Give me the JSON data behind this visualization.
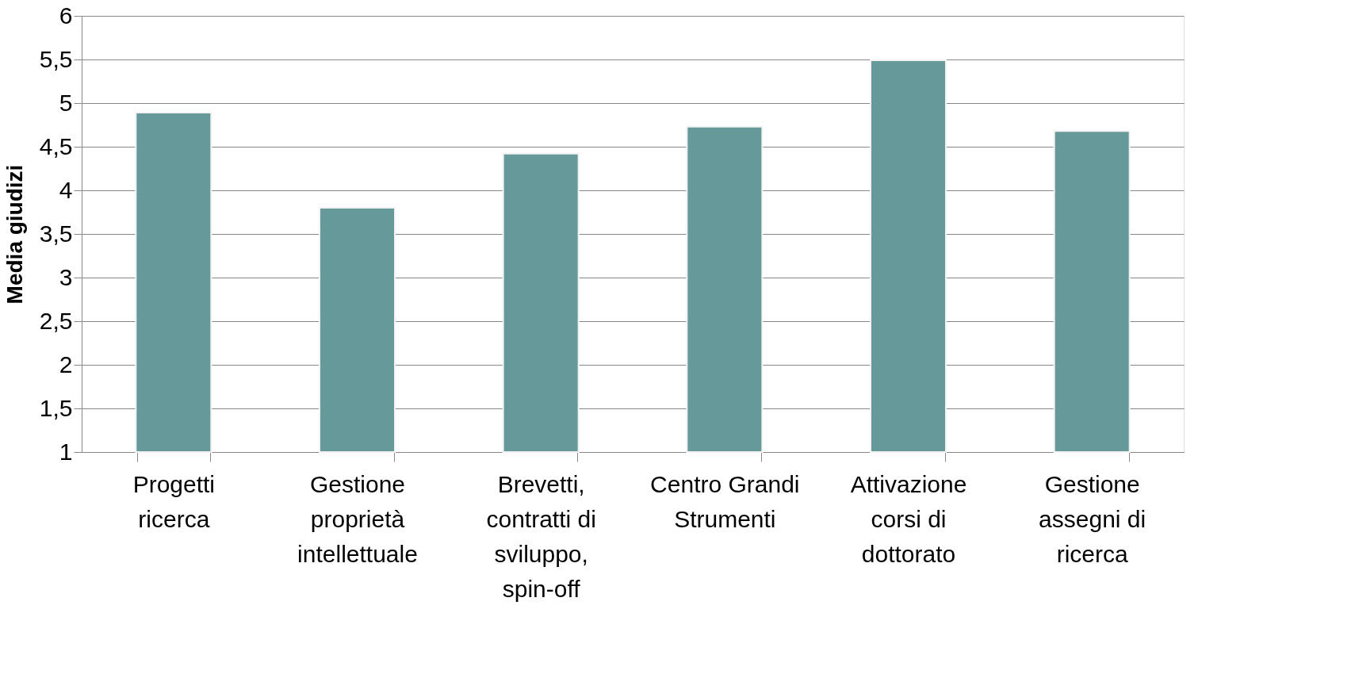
{
  "chart_data": {
    "type": "bar",
    "ylabel": "Media giudizi",
    "categories": [
      "Progetti ricerca",
      "Gestione proprietà intellettuale",
      "Brevetti, contratti di sviluppo, spin-off",
      "Centro Grandi Strumenti",
      "Attivazione corsi di dottorato",
      "Gestione assegni di ricerca"
    ],
    "values": [
      4.89,
      3.8,
      4.42,
      4.73,
      5.49,
      4.68
    ],
    "color": "#669999",
    "ylim": [
      1,
      6
    ],
    "yticks": [
      1,
      {
        "value": 1.5,
        "label": "1,5"
      },
      2,
      {
        "value": 2.5,
        "label": "2,5"
      },
      3,
      {
        "value": 3.5,
        "label": "3,5"
      },
      4,
      {
        "value": 4.5,
        "label": "4,5"
      },
      5,
      {
        "value": 5.5,
        "label": "5,5"
      },
      6
    ],
    "grid": "y"
  }
}
